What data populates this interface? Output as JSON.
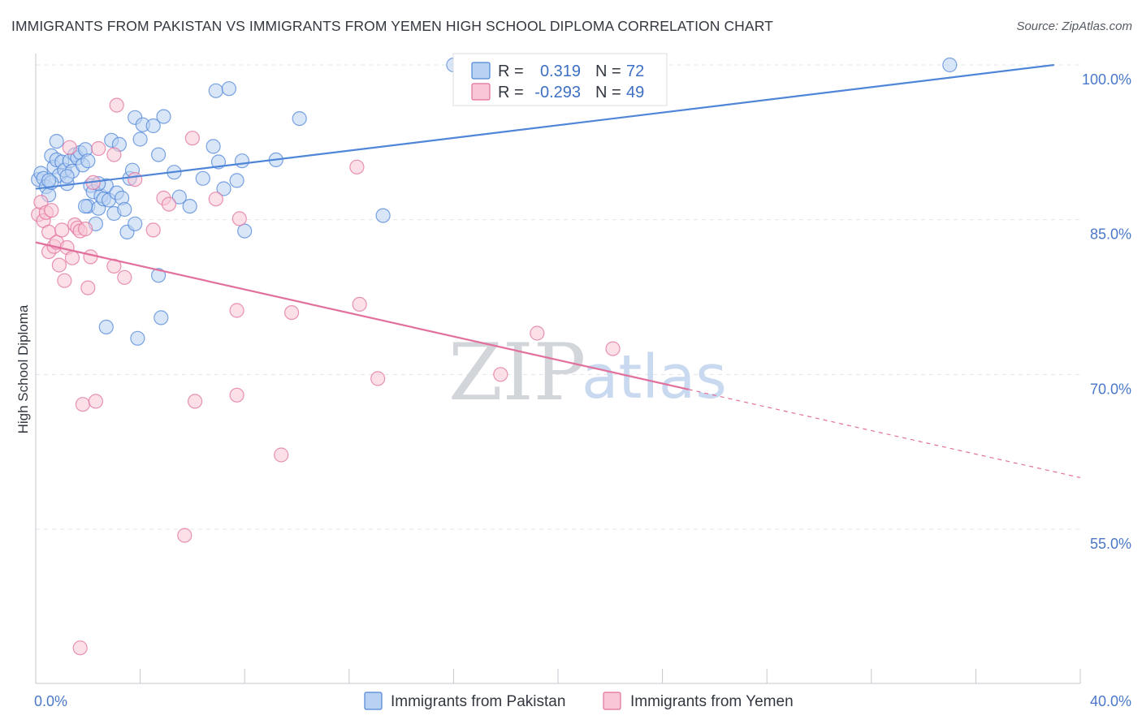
{
  "title": "IMMIGRANTS FROM PAKISTAN VS IMMIGRANTS FROM YEMEN HIGH SCHOOL DIPLOMA CORRELATION CHART",
  "source": "Source: ZipAtlas.com",
  "watermark": {
    "zip": "ZIP",
    "atlas": "atlas"
  },
  "colors": {
    "pakistan": "#4f86d8",
    "pakistan_fill": "#b9d1f3",
    "yemen": "#e2709c",
    "yemen_fill": "#f8c6d6",
    "tick": "#4a78c8",
    "grid": "#e2e4e8"
  },
  "chart_data": {
    "type": "scatter",
    "title": "IMMIGRANTS FROM PAKISTAN VS IMMIGRANTS FROM YEMEN HIGH SCHOOL DIPLOMA CORRELATION CHART",
    "xlabel": "",
    "ylabel": "High School Diploma",
    "xlim": [
      0,
      40
    ],
    "ylim": [
      40,
      102
    ],
    "x_tick_labels": {
      "left": "0.0%",
      "right": "40.0%"
    },
    "y_ticks": [
      {
        "value": 100,
        "label": "100.0%"
      },
      {
        "value": 85,
        "label": "85.0%"
      },
      {
        "value": 70,
        "label": "70.0%"
      },
      {
        "value": 55,
        "label": "55.0%"
      }
    ],
    "legend": [
      {
        "series": "pakistan",
        "r_label": "R =",
        "r_value": "0.319",
        "n_label": "N =",
        "n_value": "72"
      },
      {
        "series": "yemen",
        "r_label": "R =",
        "r_value": "-0.293",
        "n_label": "N =",
        "n_value": "49"
      }
    ],
    "series": [
      {
        "name": "Immigrants from Pakistan",
        "key": "pakistan",
        "trend": {
          "x0": 0,
          "y0": 88.0,
          "x1": 39.0,
          "y1": 100.0,
          "solid_to": 39.0
        },
        "points": [
          [
            0.1,
            88.9
          ],
          [
            0.2,
            89.5
          ],
          [
            0.3,
            89.0
          ],
          [
            0.4,
            88.2
          ],
          [
            0.5,
            87.4
          ],
          [
            0.6,
            91.2
          ],
          [
            0.7,
            90.1
          ],
          [
            0.8,
            90.8
          ],
          [
            0.8,
            92.6
          ],
          [
            0.9,
            89.3
          ],
          [
            1.0,
            90.6
          ],
          [
            1.1,
            89.8
          ],
          [
            1.2,
            88.5
          ],
          [
            1.3,
            90.7
          ],
          [
            1.4,
            89.7
          ],
          [
            1.5,
            91.3
          ],
          [
            1.6,
            91.0
          ],
          [
            1.7,
            91.5
          ],
          [
            1.8,
            90.3
          ],
          [
            1.9,
            91.8
          ],
          [
            2.0,
            90.7
          ],
          [
            2.0,
            86.3
          ],
          [
            2.1,
            88.3
          ],
          [
            2.2,
            87.7
          ],
          [
            2.3,
            84.6
          ],
          [
            2.4,
            86.1
          ],
          [
            2.5,
            87.3
          ],
          [
            2.6,
            87.0
          ],
          [
            2.7,
            88.3
          ],
          [
            2.8,
            86.9
          ],
          [
            2.9,
            92.7
          ],
          [
            3.0,
            85.6
          ],
          [
            3.1,
            87.6
          ],
          [
            3.2,
            92.3
          ],
          [
            3.3,
            87.1
          ],
          [
            3.4,
            86.0
          ],
          [
            3.5,
            83.8
          ],
          [
            3.6,
            89.0
          ],
          [
            3.7,
            89.8
          ],
          [
            3.8,
            84.6
          ],
          [
            3.8,
            94.9
          ],
          [
            4.0,
            92.8
          ],
          [
            4.1,
            94.2
          ],
          [
            4.5,
            94.1
          ],
          [
            4.7,
            91.3
          ],
          [
            4.9,
            95.0
          ],
          [
            5.3,
            89.6
          ],
          [
            5.5,
            87.2
          ],
          [
            5.9,
            86.3
          ],
          [
            6.4,
            89.0
          ],
          [
            6.8,
            92.1
          ],
          [
            6.9,
            97.5
          ],
          [
            7.0,
            90.6
          ],
          [
            7.2,
            88.0
          ],
          [
            7.4,
            97.7
          ],
          [
            7.7,
            88.8
          ],
          [
            7.9,
            90.7
          ],
          [
            8.0,
            83.9
          ],
          [
            9.2,
            90.8
          ],
          [
            10.1,
            94.8
          ],
          [
            13.3,
            85.4
          ],
          [
            16.0,
            100.0
          ],
          [
            2.7,
            74.6
          ],
          [
            3.9,
            73.5
          ],
          [
            4.8,
            75.5
          ],
          [
            4.7,
            79.6
          ],
          [
            1.9,
            86.3
          ],
          [
            2.4,
            88.5
          ],
          [
            1.2,
            89.2
          ],
          [
            0.6,
            88.6
          ],
          [
            35.0,
            100.0
          ],
          [
            0.5,
            88.8
          ]
        ]
      },
      {
        "name": "Immigrants from Yemen",
        "key": "yemen",
        "trend": {
          "x0": 0,
          "y0": 82.8,
          "x1": 40.0,
          "y1": 60.0,
          "solid_to": 25.0
        },
        "points": [
          [
            0.1,
            85.5
          ],
          [
            0.2,
            86.7
          ],
          [
            0.3,
            84.9
          ],
          [
            0.4,
            85.7
          ],
          [
            0.5,
            83.8
          ],
          [
            0.5,
            81.9
          ],
          [
            0.6,
            85.9
          ],
          [
            0.7,
            82.4
          ],
          [
            0.8,
            82.8
          ],
          [
            0.9,
            80.6
          ],
          [
            1.0,
            84.0
          ],
          [
            1.1,
            79.1
          ],
          [
            1.2,
            82.3
          ],
          [
            1.3,
            92.0
          ],
          [
            1.4,
            81.3
          ],
          [
            1.5,
            84.5
          ],
          [
            1.6,
            84.2
          ],
          [
            1.7,
            83.9
          ],
          [
            1.9,
            84.1
          ],
          [
            2.0,
            78.4
          ],
          [
            2.1,
            81.4
          ],
          [
            2.2,
            88.6
          ],
          [
            2.4,
            91.9
          ],
          [
            3.0,
            80.5
          ],
          [
            3.0,
            91.3
          ],
          [
            3.1,
            96.1
          ],
          [
            3.4,
            79.4
          ],
          [
            3.8,
            88.9
          ],
          [
            4.5,
            84.0
          ],
          [
            4.9,
            87.1
          ],
          [
            5.1,
            86.5
          ],
          [
            6.0,
            92.9
          ],
          [
            6.9,
            87.0
          ],
          [
            7.7,
            76.2
          ],
          [
            7.8,
            85.1
          ],
          [
            9.8,
            76.0
          ],
          [
            12.3,
            90.1
          ],
          [
            12.4,
            76.8
          ],
          [
            13.1,
            69.6
          ],
          [
            17.8,
            70.0
          ],
          [
            19.2,
            74.0
          ],
          [
            22.1,
            72.5
          ],
          [
            1.8,
            67.1
          ],
          [
            2.3,
            67.4
          ],
          [
            6.1,
            67.4
          ],
          [
            7.7,
            68.0
          ],
          [
            9.4,
            62.2
          ],
          [
            5.7,
            54.4
          ],
          [
            1.7,
            43.5
          ]
        ]
      }
    ]
  },
  "bottom_legend": [
    {
      "key": "pakistan",
      "label": "Immigrants from Pakistan"
    },
    {
      "key": "yemen",
      "label": "Immigrants from Yemen"
    }
  ]
}
